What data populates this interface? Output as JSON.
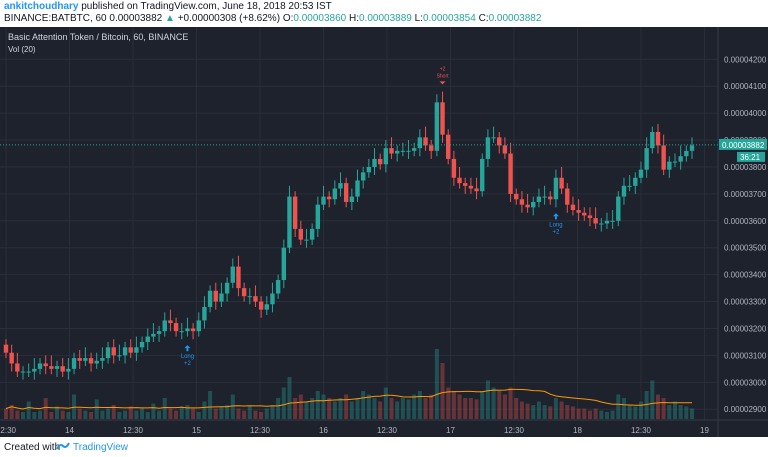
{
  "header": {
    "author": "ankitchoudhary",
    "published": "published on TradingView.com, June 18, 2018 20:53 IST",
    "symbol": "BINANCE:BATBTC, 60",
    "change_arrow": "▲",
    "change": "+0.00000308 (+8.62%)",
    "ohlc": [
      {
        "label": "O:",
        "value": "0.00003860"
      },
      {
        "label": "H:",
        "value": "0.00003889"
      },
      {
        "label": "L:",
        "value": "0.00003854"
      },
      {
        "label": "C:",
        "value": "0.00003882"
      }
    ],
    "last": "0.00003882"
  },
  "footer": {
    "created": "Created with",
    "brand": "TradingView"
  },
  "chart_data": {
    "type": "candlestick",
    "title": "Basic Attention Token / Bitcoin, 60, BINANCE",
    "volume_label": "Vol (20)",
    "y_ticks": [
      "0.00004200",
      "0.00004100",
      "0.00004000",
      "0.00003900",
      "0.00003800",
      "0.00003700",
      "0.00003600",
      "0.00003500",
      "0.00003400",
      "0.00003300",
      "0.00003200",
      "0.00003100",
      "0.00003000",
      "0.00002900"
    ],
    "x_ticks": [
      "12:30",
      "14",
      "12:30",
      "15",
      "12:30",
      "16",
      "12:30",
      "17",
      "12:30",
      "18",
      "12:30",
      "19"
    ],
    "ylim": [
      2.86e-05,
      4.32e-05
    ],
    "last_price_label": "0.00003882",
    "countdown_label": "36:21",
    "colors": {
      "up": "#26a69a",
      "down": "#ef5350",
      "background": "#1e222d",
      "grid": "#2a2e39",
      "signal": "#2196f3",
      "sell": "#ef5350"
    },
    "candles_open": [
      3.14,
      3.11,
      3.07,
      3.04,
      3.04,
      3.04,
      3.05,
      3.07,
      3.06,
      3.05,
      3.06,
      3.04,
      3.05,
      3.09,
      3.08,
      3.09,
      3.07,
      3.08,
      3.09,
      3.13,
      3.1,
      3.1,
      3.13,
      3.11,
      3.13,
      3.15,
      3.17,
      3.18,
      3.19,
      3.23,
      3.22,
      3.19,
      3.19,
      3.2,
      3.19,
      3.23,
      3.28,
      3.34,
      3.3,
      3.33,
      3.37,
      3.43,
      3.35,
      3.32,
      3.32,
      3.3,
      3.27,
      3.29,
      3.33,
      3.38,
      3.5,
      3.69,
      3.57,
      3.53,
      3.53,
      3.57,
      3.66,
      3.69,
      3.68,
      3.72,
      3.74,
      3.67,
      3.69,
      3.75,
      3.78,
      3.8,
      3.83,
      3.81,
      3.87,
      3.85,
      3.86,
      3.86,
      3.86,
      3.87,
      3.91,
      3.88,
      3.86,
      4.04,
      3.92,
      3.83,
      3.76,
      3.74,
      3.73,
      3.72,
      3.71,
      3.83,
      3.91,
      3.91,
      3.88,
      3.85,
      3.7,
      3.68,
      3.66,
      3.65,
      3.67,
      3.69,
      3.69,
      3.68,
      3.76,
      3.72,
      3.66,
      3.64,
      3.63,
      3.62,
      3.61,
      3.59,
      3.59,
      3.6,
      3.6,
      3.69,
      3.73,
      3.73,
      3.76,
      3.79,
      3.87,
      3.93,
      3.88,
      3.79,
      3.82,
      3.82,
      3.84,
      3.86
    ],
    "candles_close": [
      3.11,
      3.07,
      3.04,
      3.04,
      3.04,
      3.05,
      3.07,
      3.06,
      3.05,
      3.06,
      3.04,
      3.05,
      3.09,
      3.08,
      3.09,
      3.07,
      3.08,
      3.09,
      3.13,
      3.1,
      3.1,
      3.13,
      3.11,
      3.13,
      3.15,
      3.17,
      3.18,
      3.19,
      3.23,
      3.22,
      3.19,
      3.19,
      3.2,
      3.19,
      3.23,
      3.28,
      3.34,
      3.3,
      3.33,
      3.37,
      3.43,
      3.35,
      3.32,
      3.32,
      3.3,
      3.27,
      3.29,
      3.33,
      3.38,
      3.5,
      3.69,
      3.57,
      3.53,
      3.53,
      3.57,
      3.66,
      3.69,
      3.68,
      3.72,
      3.74,
      3.67,
      3.69,
      3.75,
      3.78,
      3.8,
      3.83,
      3.81,
      3.87,
      3.85,
      3.86,
      3.86,
      3.86,
      3.87,
      3.91,
      3.88,
      3.86,
      4.04,
      3.92,
      3.83,
      3.76,
      3.74,
      3.73,
      3.72,
      3.71,
      3.83,
      3.91,
      3.91,
      3.88,
      3.85,
      3.7,
      3.68,
      3.66,
      3.65,
      3.67,
      3.69,
      3.69,
      3.68,
      3.76,
      3.72,
      3.66,
      3.64,
      3.63,
      3.62,
      3.61,
      3.59,
      3.59,
      3.6,
      3.6,
      3.69,
      3.73,
      3.73,
      3.76,
      3.79,
      3.87,
      3.93,
      3.88,
      3.79,
      3.82,
      3.82,
      3.84,
      3.86,
      3.88
    ],
    "volume": [
      0.15,
      0.2,
      0.12,
      0.1,
      0.25,
      0.1,
      0.12,
      0.3,
      0.1,
      0.18,
      0.12,
      0.1,
      0.35,
      0.15,
      0.12,
      0.1,
      0.28,
      0.12,
      0.15,
      0.2,
      0.1,
      0.12,
      0.18,
      0.12,
      0.15,
      0.1,
      0.22,
      0.12,
      0.3,
      0.15,
      0.12,
      0.18,
      0.2,
      0.15,
      0.1,
      0.25,
      0.4,
      0.15,
      0.18,
      0.2,
      0.35,
      0.15,
      0.12,
      0.18,
      0.12,
      0.1,
      0.15,
      0.2,
      0.3,
      0.45,
      0.6,
      0.3,
      0.35,
      0.25,
      0.3,
      0.4,
      0.35,
      0.3,
      0.25,
      0.3,
      0.35,
      0.25,
      0.3,
      0.4,
      0.35,
      0.3,
      0.25,
      0.45,
      0.3,
      0.25,
      0.3,
      0.28,
      0.35,
      0.4,
      0.3,
      0.35,
      1.0,
      0.8,
      0.45,
      0.4,
      0.35,
      0.3,
      0.3,
      0.28,
      0.4,
      0.55,
      0.45,
      0.4,
      0.35,
      0.45,
      0.3,
      0.25,
      0.22,
      0.2,
      0.25,
      0.2,
      0.18,
      0.3,
      0.25,
      0.2,
      0.18,
      0.15,
      0.15,
      0.12,
      0.15,
      0.12,
      0.1,
      0.12,
      0.35,
      0.3,
      0.2,
      0.18,
      0.25,
      0.4,
      0.55,
      0.35,
      0.3,
      0.2,
      0.25,
      0.2,
      0.18,
      0.15
    ],
    "signals": [
      {
        "type": "long",
        "candle": 32,
        "text1": "Long",
        "text2": "+2"
      },
      {
        "type": "long",
        "candle": 97,
        "text1": "Long",
        "text2": "+2"
      },
      {
        "type": "short",
        "candle": 77,
        "text1": "Short",
        "text2": "+2"
      }
    ]
  }
}
